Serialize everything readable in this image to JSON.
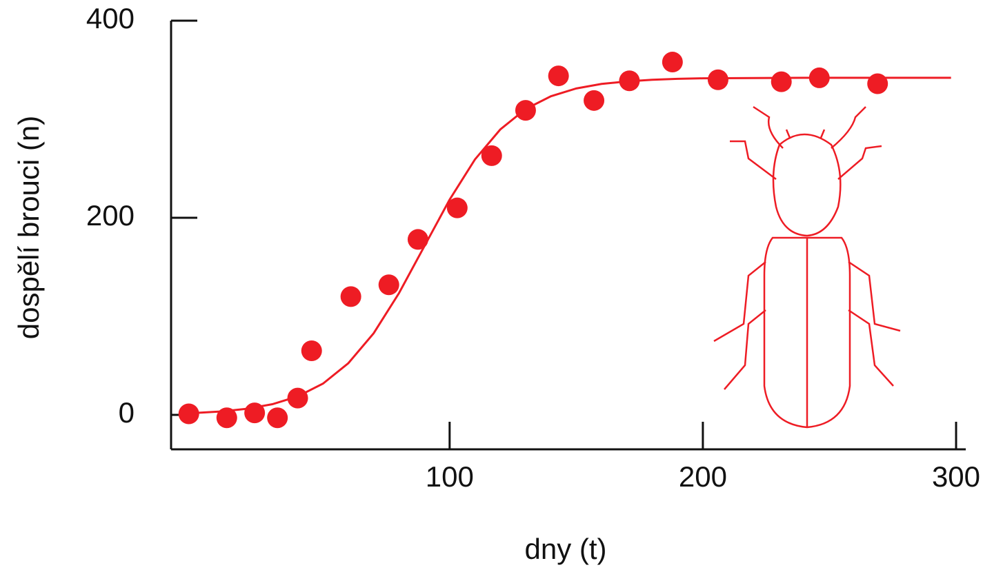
{
  "chart_data": {
    "type": "scatter",
    "x_label": "dny (t)",
    "y_label": "dospělí brouci (n)",
    "color": "#ee1c24",
    "xlim": [
      -10,
      300
    ],
    "ylim": [
      -35,
      400
    ],
    "xticks": [
      100,
      200,
      300
    ],
    "yticks": [
      0,
      200,
      400
    ],
    "series": [
      {
        "x": [
          -3,
          12,
          23,
          32,
          40,
          45.5,
          61,
          76,
          87.5,
          103,
          116.6,
          130,
          143,
          157,
          171,
          188,
          206,
          231,
          246,
          269
        ],
        "values": [
          1,
          -3,
          2,
          -3,
          17,
          65,
          120,
          132,
          178,
          210,
          263,
          309,
          344,
          319,
          339,
          358,
          340,
          338,
          342,
          336
        ]
      }
    ],
    "fit": {
      "x": [
        0,
        10,
        20,
        30,
        40,
        50,
        60,
        70,
        80,
        90,
        100,
        110,
        120,
        130,
        140,
        150,
        160,
        170,
        180,
        190,
        200,
        220,
        240,
        260,
        280,
        298
      ],
      "values": [
        2,
        3.5,
        6.2,
        10.8,
        18.7,
        31.7,
        52.4,
        82.8,
        123.5,
        171,
        218.4,
        259.2,
        289.6,
        310.3,
        323.3,
        331.2,
        335.8,
        338.4,
        340,
        341,
        341.5,
        341.8,
        342,
        342,
        342,
        342
      ]
    }
  }
}
